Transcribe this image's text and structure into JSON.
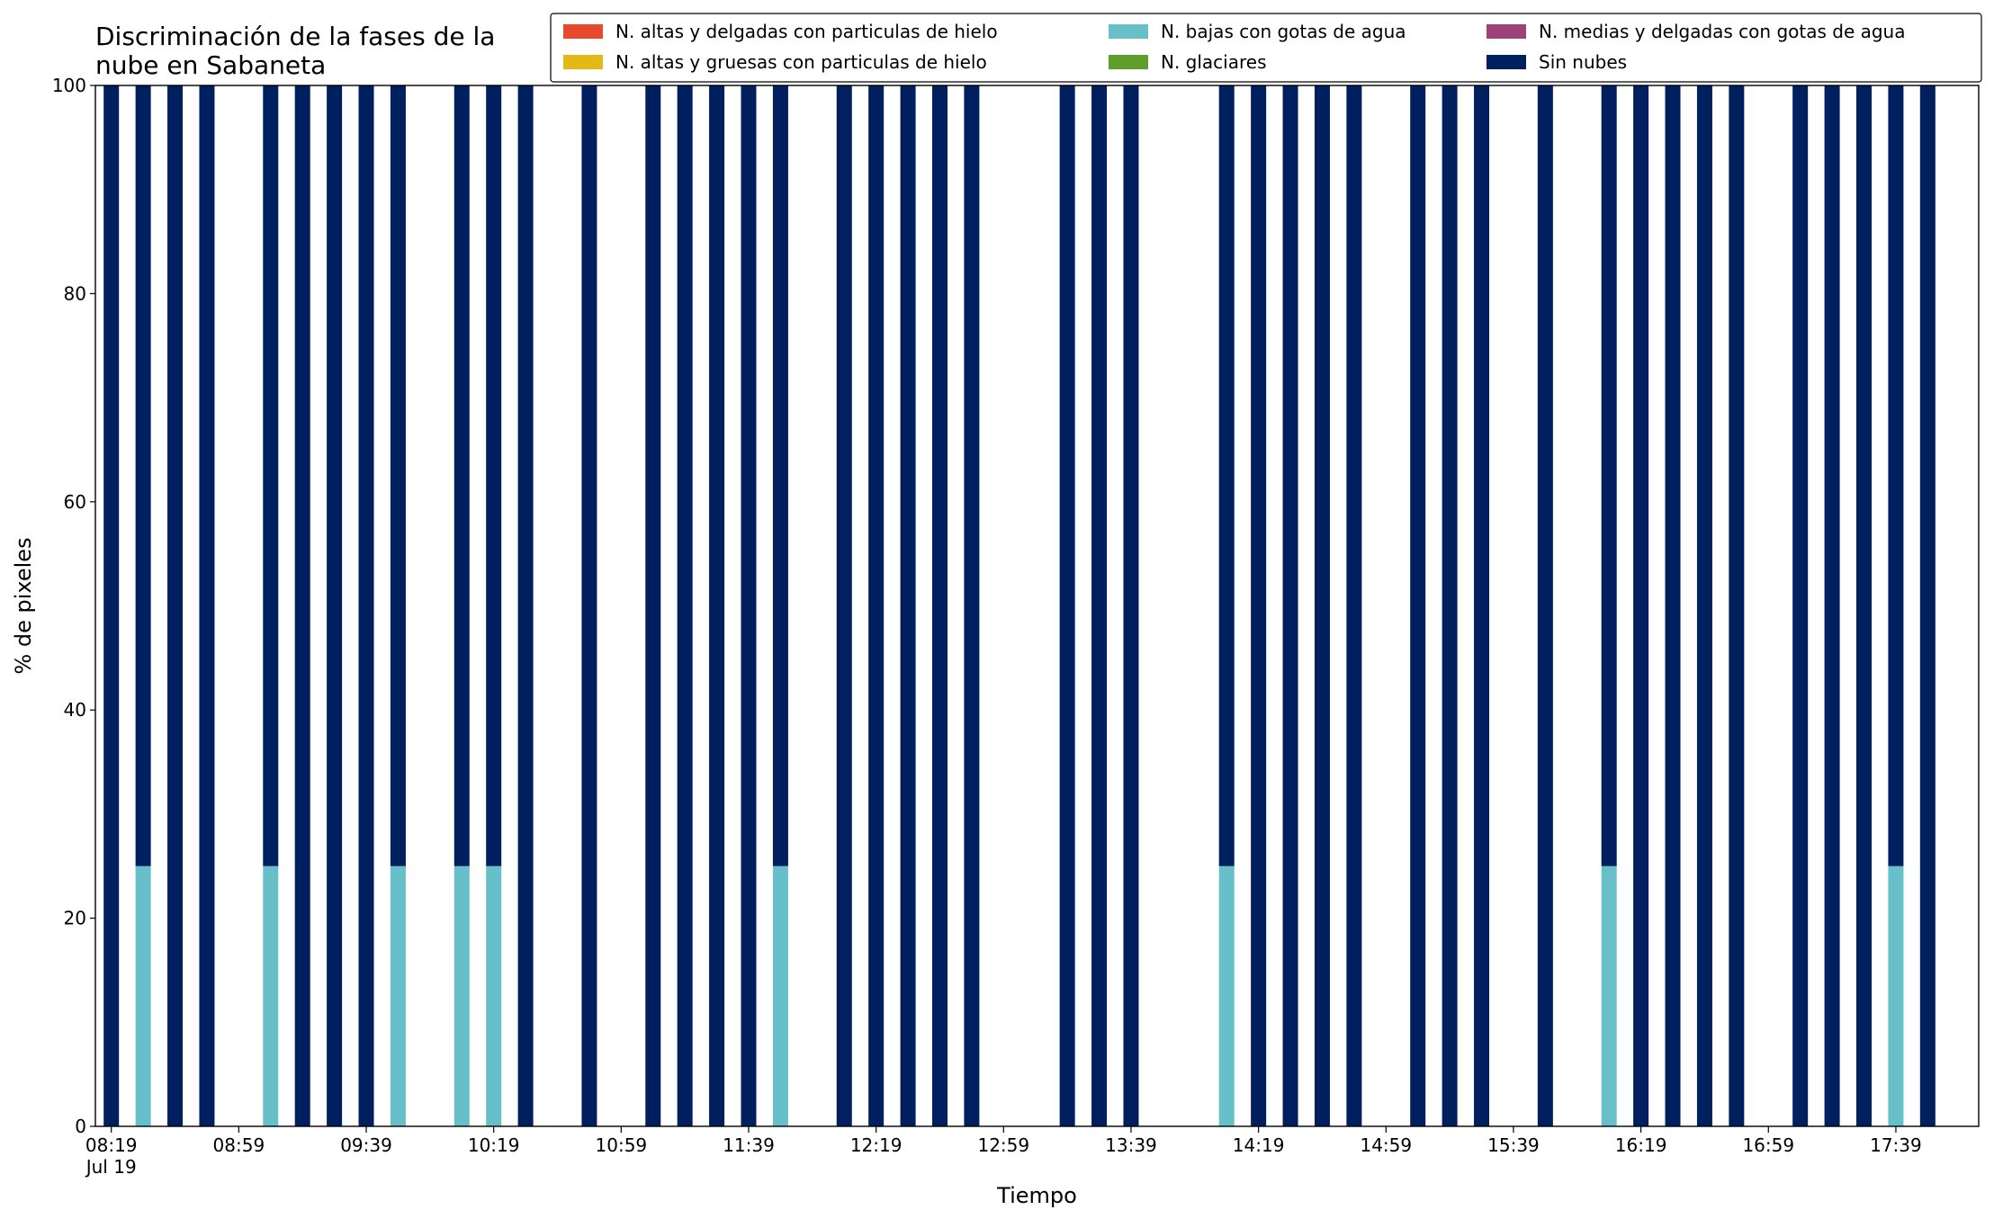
{
  "chart_data": {
    "type": "stacked_bar",
    "title": "Discriminación de la fases de la\nnube en Sabaneta",
    "xlabel": "Tiempo",
    "ylabel": "% de pixeles",
    "x": [
      "08:19",
      "08:29",
      "08:39",
      "08:49",
      "09:09",
      "09:19",
      "09:29",
      "09:39",
      "09:49",
      "10:09",
      "10:19",
      "10:29",
      "10:49",
      "11:09",
      "11:19",
      "11:29",
      "11:39",
      "11:49",
      "12:09",
      "12:19",
      "12:29",
      "12:39",
      "12:49",
      "13:19",
      "13:29",
      "13:39",
      "14:09",
      "14:19",
      "14:29",
      "14:39",
      "14:49",
      "15:09",
      "15:19",
      "15:29",
      "15:49",
      "16:09",
      "16:19",
      "16:29",
      "16:39",
      "16:49",
      "17:09",
      "17:19",
      "17:29",
      "17:39",
      "17:49"
    ],
    "series": [
      {
        "name": "N. altas y delgadas con particulas de hielo",
        "color": "#e8482c",
        "values": [
          0,
          0,
          0,
          0,
          0,
          0,
          0,
          0,
          0,
          0,
          0,
          0,
          0,
          0,
          0,
          0,
          0,
          0,
          0,
          0,
          0,
          0,
          0,
          0,
          0,
          0,
          0,
          0,
          0,
          0,
          0,
          0,
          0,
          0,
          0,
          0,
          0,
          0,
          0,
          0,
          0,
          0,
          0,
          0,
          0
        ]
      },
      {
        "name": "N. altas y gruesas con particulas de hielo",
        "color": "#e5b915",
        "values": [
          0,
          0,
          0,
          0,
          0,
          0,
          0,
          0,
          0,
          0,
          0,
          0,
          0,
          0,
          0,
          0,
          0,
          0,
          0,
          0,
          0,
          0,
          0,
          0,
          0,
          0,
          0,
          0,
          0,
          0,
          0,
          0,
          0,
          0,
          0,
          0,
          0,
          0,
          0,
          0,
          0,
          0,
          0,
          0,
          0
        ]
      },
      {
        "name": "N. bajas con gotas de agua",
        "color": "#67bfca",
        "values": [
          0,
          25,
          0,
          0,
          25,
          0,
          0,
          0,
          25,
          25,
          25,
          0,
          0,
          0,
          0,
          0,
          0,
          25,
          0,
          0,
          0,
          0,
          0,
          0,
          0,
          0,
          25,
          0,
          0,
          0,
          0,
          0,
          0,
          0,
          0,
          25,
          0,
          0,
          0,
          0,
          0,
          0,
          0,
          25,
          0
        ]
      },
      {
        "name": "N. glaciares",
        "color": "#5e9e2b",
        "values": [
          0,
          0,
          0,
          0,
          0,
          0,
          0,
          0,
          0,
          0,
          0,
          0,
          0,
          0,
          0,
          0,
          0,
          0,
          0,
          0,
          0,
          0,
          0,
          0,
          0,
          0,
          0,
          0,
          0,
          0,
          0,
          0,
          0,
          0,
          0,
          0,
          0,
          0,
          0,
          0,
          0,
          0,
          0,
          0,
          0
        ]
      },
      {
        "name": "N. medias y delgadas con gotas de agua",
        "color": "#a0427a",
        "values": [
          0,
          0,
          0,
          0,
          0,
          0,
          0,
          0,
          0,
          0,
          0,
          0,
          0,
          0,
          0,
          0,
          0,
          0,
          0,
          0,
          0,
          0,
          0,
          0,
          0,
          0,
          0,
          0,
          0,
          0,
          0,
          0,
          0,
          0,
          0,
          0,
          0,
          0,
          0,
          0,
          0,
          0,
          0,
          0,
          0
        ]
      },
      {
        "name": "Sin nubes",
        "color": "#001f5e",
        "values": [
          100,
          75,
          100,
          100,
          75,
          100,
          100,
          100,
          75,
          75,
          75,
          100,
          100,
          100,
          100,
          100,
          100,
          75,
          100,
          100,
          100,
          100,
          100,
          100,
          100,
          100,
          75,
          100,
          100,
          100,
          100,
          100,
          100,
          100,
          100,
          75,
          100,
          100,
          100,
          100,
          100,
          100,
          100,
          75,
          100
        ]
      }
    ],
    "xlim": [
      "08:14",
      "18:05"
    ],
    "xticks": [
      "08:19",
      "08:59",
      "09:39",
      "10:19",
      "10:59",
      "11:39",
      "12:19",
      "12:59",
      "13:39",
      "14:19",
      "14:59",
      "15:39",
      "16:19",
      "16:59",
      "17:39"
    ],
    "x_date_label": "Jul 19",
    "ylim": [
      0,
      100
    ],
    "yticks": [
      0,
      20,
      40,
      60,
      80,
      100
    ],
    "legend": "top-right"
  }
}
